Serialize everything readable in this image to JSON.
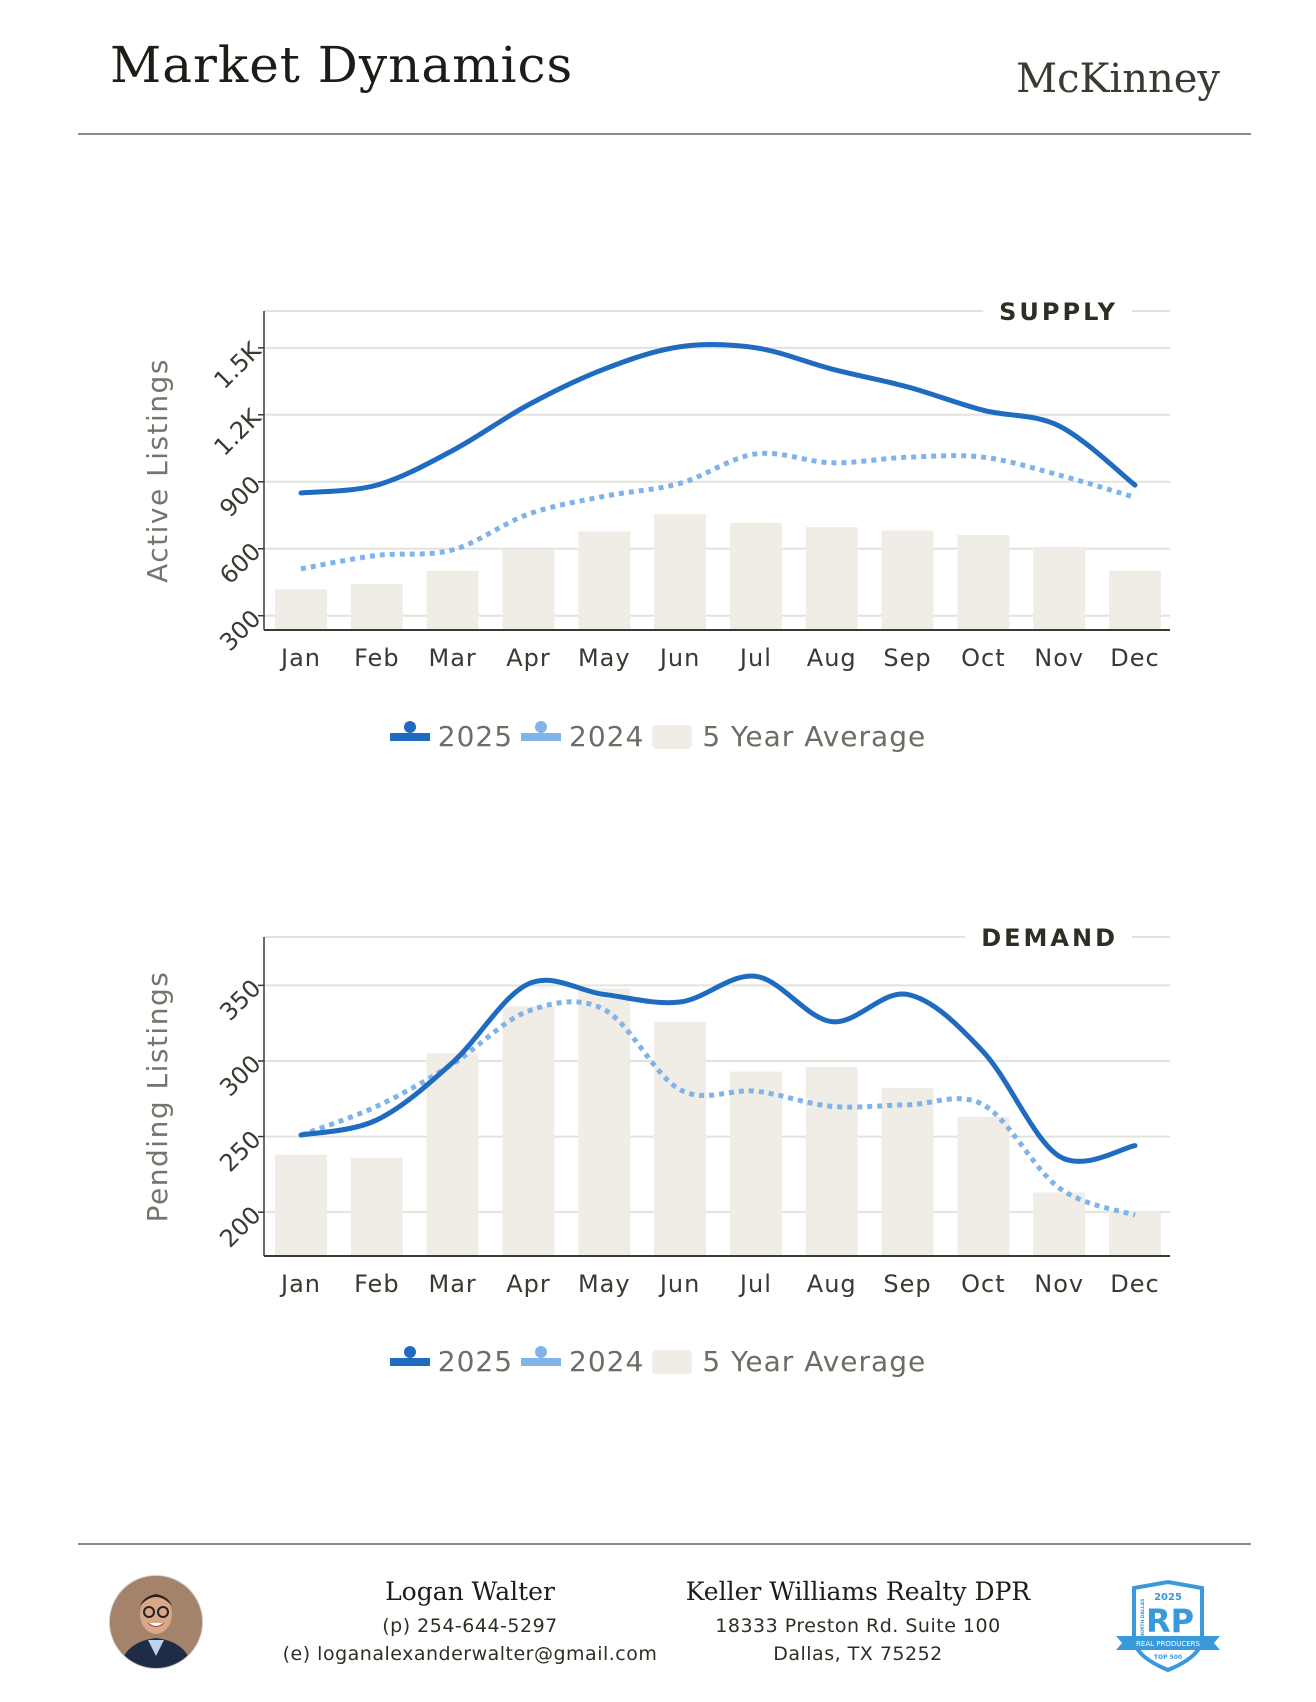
{
  "header": {
    "title": "Market Dynamics",
    "city": "McKinney"
  },
  "colors": {
    "c2025": "#1f6bbf",
    "c2024": "#7fb3ea",
    "avg": "#f0ede6",
    "grid": "#e4e2dd",
    "axis": "#3a3a33",
    "text": "#3a3a33"
  },
  "legend": {
    "l2025": "2025",
    "l2024": "2024",
    "lavg": "5 Year Average"
  },
  "chart_data": [
    {
      "type": "line+bar",
      "title": "SUPPLY",
      "ylabel": "Active Listings",
      "ylim": [
        236,
        1665
      ],
      "yticks": [
        300,
        600,
        900,
        1200,
        1500
      ],
      "ytick_labels": [
        "300",
        "600",
        "900",
        "1.2K",
        "1.5K"
      ],
      "categories": [
        "Jan",
        "Feb",
        "Mar",
        "Apr",
        "May",
        "Jun",
        "Jul",
        "Aug",
        "Sep",
        "Oct",
        "Nov",
        "Dec"
      ],
      "series": [
        {
          "name": "2025",
          "style": "solid",
          "values": [
            850,
            885,
            1040,
            1245,
            1405,
            1505,
            1500,
            1405,
            1325,
            1220,
            1150,
            885
          ]
        },
        {
          "name": "2024",
          "style": "dotted",
          "values": [
            510,
            570,
            595,
            755,
            835,
            893,
            1025,
            985,
            1010,
            1010,
            930,
            830
          ]
        },
        {
          "name": "5 Year Average",
          "style": "bar",
          "values": [
            418,
            442,
            501,
            599,
            677,
            755,
            716,
            697,
            682,
            662,
            608,
            501
          ]
        }
      ],
      "grid": true,
      "legend": "bottom-center"
    },
    {
      "type": "line+bar",
      "title": "DEMAND",
      "ylabel": "Pending Listings",
      "ylim": [
        171,
        382
      ],
      "yticks": [
        200,
        250,
        300,
        350
      ],
      "ytick_labels": [
        "200",
        "250",
        "300",
        "350"
      ],
      "categories": [
        "Jan",
        "Feb",
        "Mar",
        "Apr",
        "May",
        "Jun",
        "Jul",
        "Aug",
        "Sep",
        "Oct",
        "Nov",
        "Dec"
      ],
      "series": [
        {
          "name": "2025",
          "style": "solid",
          "values": [
            251,
            261,
            299,
            351,
            344,
            339,
            356,
            326,
            344,
            306,
            237,
            244
          ]
        },
        {
          "name": "2024",
          "style": "dotted",
          "values": [
            251,
            270,
            298,
            333,
            334,
            281,
            280,
            270,
            271,
            271,
            216,
            198
          ]
        },
        {
          "name": "5 Year Average",
          "style": "bar",
          "values": [
            238,
            236,
            305,
            336,
            348,
            326,
            293,
            296,
            282,
            263,
            213,
            200
          ]
        }
      ],
      "grid": true,
      "legend": "bottom-center"
    }
  ],
  "footer": {
    "agent_name": "Logan Walter",
    "phone": "(p) 254-644-5297",
    "email": "(e) loganalexanderwalter@gmail.com",
    "company": "Keller Williams Realty DPR",
    "address1": "18333 Preston Rd. Suite 100",
    "address2": "Dallas, TX 75252",
    "badge": {
      "year": "2025",
      "letters": "RP",
      "region": "NORTH DALLAS",
      "ribbon": "REAL PRODUCERS",
      "rank": "TOP 500"
    }
  }
}
